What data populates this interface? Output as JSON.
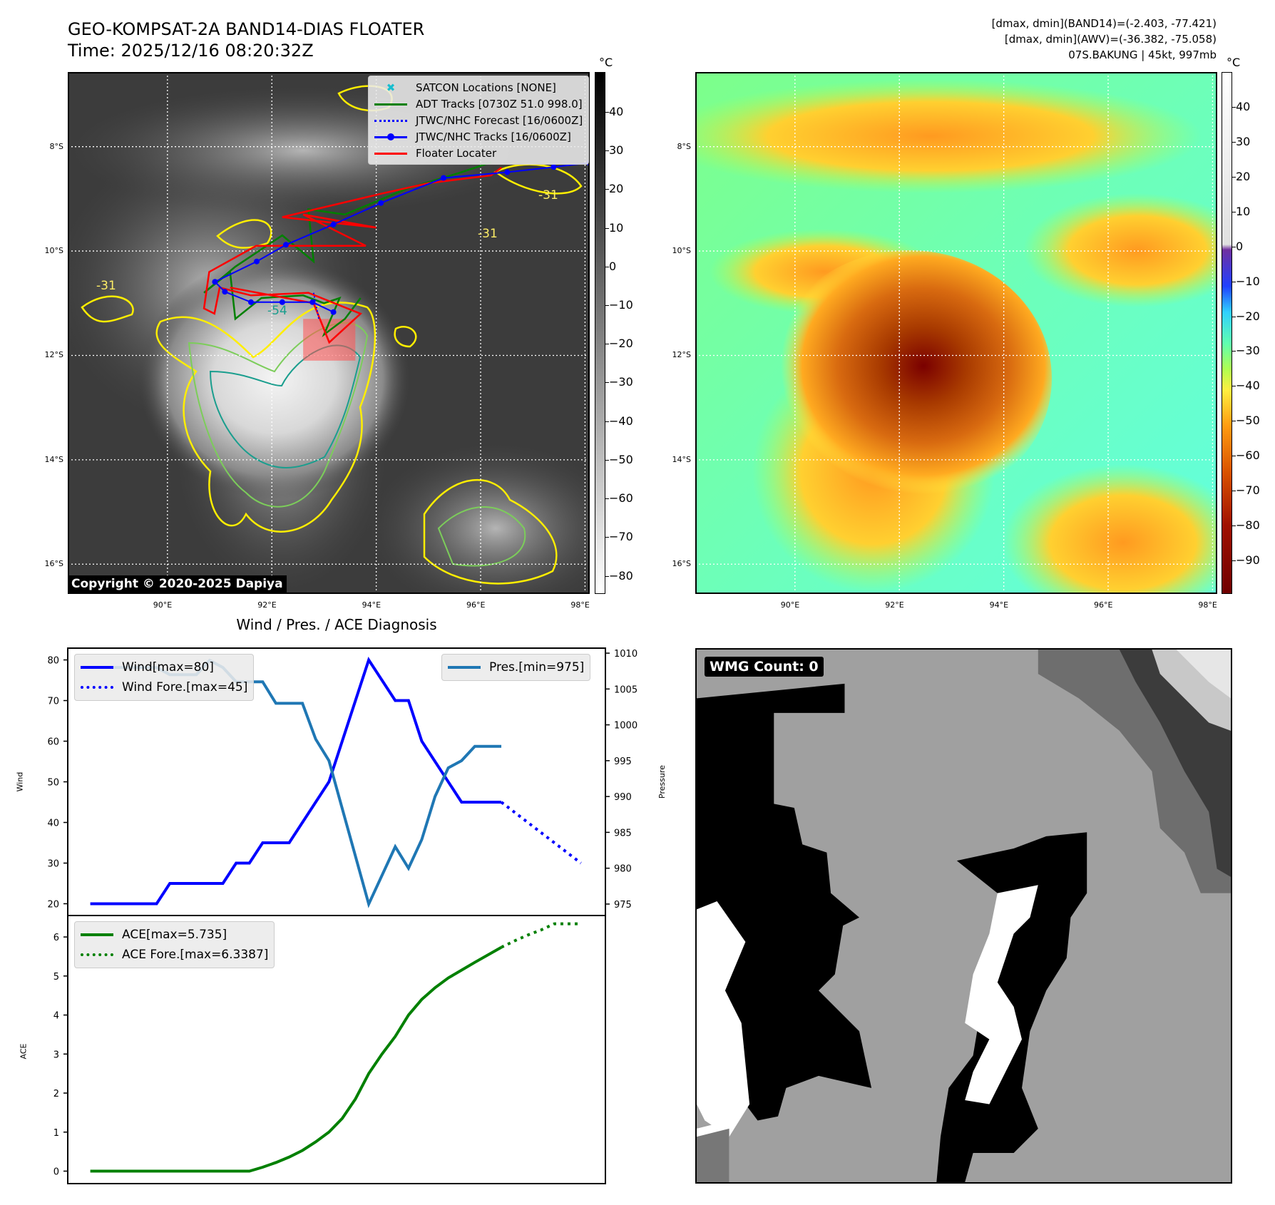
{
  "header": {
    "title_line1": "GEO-KOMPSAT-2A BAND14-DIAS FLOATER",
    "title_line2": "Time: 2025/12/16 08:20:32Z",
    "stats_band14": "[dmax, dmin](BAND14)=(-2.403, -77.421)",
    "stats_awv": "[dmax, dmin](AWV)=(-36.382, -75.058)",
    "storm_info": "07S.BAKUNG | 45kt, 997mb"
  },
  "map": {
    "lon_ticks": [
      "90°E",
      "92°E",
      "94°E",
      "96°E",
      "98°E"
    ],
    "lon_values": [
      90,
      92,
      94,
      96,
      98
    ],
    "lat_ticks": [
      "8°S",
      "10°S",
      "12°S",
      "14°S",
      "16°S"
    ],
    "lat_values": [
      8,
      10,
      12,
      14,
      16
    ],
    "copyright": "Copyright © 2020-2025 Dapiya",
    "contour_labels": [
      "-31",
      "-31",
      "-31",
      "-54"
    ],
    "legend": [
      {
        "label": "SATCON Locations [NONE]",
        "icon": "x-marker-icon",
        "color": "#17becf"
      },
      {
        "label": "ADT Tracks [0730Z 51.0 998.0]",
        "icon": "line-icon",
        "color": "#008000"
      },
      {
        "label": "JTWC/NHC Forecast [16/0600Z]",
        "icon": "dotted-line-icon",
        "color": "#0000ff"
      },
      {
        "label": "JTWC/NHC Tracks [16/0600Z]",
        "icon": "line-dot-icon",
        "color": "#0000ff"
      },
      {
        "label": "Floater Locater",
        "icon": "line-icon",
        "color": "#ff0000"
      }
    ],
    "jtwc_track": [
      [
        98.08,
        8.31
      ],
      [
        97.4,
        8.39
      ],
      [
        96.51,
        8.49
      ],
      [
        95.29,
        8.6
      ],
      [
        94.09,
        9.08
      ],
      [
        93.18,
        9.49
      ],
      [
        92.27,
        9.88
      ],
      [
        91.71,
        10.2
      ],
      [
        90.91,
        10.59
      ],
      [
        91.1,
        10.78
      ],
      [
        91.6,
        10.98
      ],
      [
        92.2,
        10.98
      ],
      [
        92.78,
        10.98
      ],
      [
        93.18,
        11.17
      ]
    ],
    "floater_track": [
      [
        96.4,
        8.4
      ],
      [
        96.2,
        8.55
      ],
      [
        95.0,
        8.7
      ],
      [
        94.1,
        8.9
      ],
      [
        92.2,
        9.35
      ],
      [
        94.0,
        9.55
      ],
      [
        92.6,
        9.3
      ],
      [
        93.8,
        9.9
      ],
      [
        91.7,
        9.9
      ],
      [
        90.8,
        10.4
      ],
      [
        90.7,
        11.1
      ],
      [
        90.9,
        11.2
      ],
      [
        91.0,
        10.7
      ],
      [
        91.6,
        10.85
      ],
      [
        92.7,
        10.8
      ],
      [
        93.7,
        11.2
      ],
      [
        93.1,
        11.75
      ],
      [
        92.8,
        11.0
      ],
      [
        91.2,
        10.7
      ]
    ],
    "adt_track": [
      [
        96.2,
        8.3
      ],
      [
        95.6,
        8.5
      ],
      [
        94.6,
        8.8
      ],
      [
        93.4,
        9.3
      ],
      [
        92.7,
        9.2
      ],
      [
        92.8,
        10.2
      ],
      [
        92.2,
        9.7
      ],
      [
        91.3,
        10.3
      ],
      [
        90.7,
        10.8
      ],
      [
        91.2,
        10.4
      ],
      [
        91.3,
        11.3
      ],
      [
        91.8,
        10.9
      ],
      [
        92.6,
        10.85
      ],
      [
        93.0,
        11.0
      ],
      [
        93.3,
        10.9
      ],
      [
        93.0,
        11.6
      ],
      [
        93.4,
        11.3
      ],
      [
        93.7,
        10.9
      ]
    ],
    "jtwc_forecast": [
      [
        92.8,
        10.8
      ],
      [
        92.9,
        11.3
      ]
    ],
    "floater_box": [
      [
        92.6,
        11.3
      ],
      [
        93.6,
        12.1
      ]
    ],
    "colorbar_left": {
      "unit": "°C",
      "ticks": [
        40,
        30,
        20,
        10,
        0,
        -10,
        -20,
        -30,
        -40,
        -50,
        -60,
        -70,
        -80
      ],
      "range": [
        50.3,
        -84.7
      ]
    },
    "colorbar_right": {
      "unit": "°C",
      "ticks": [
        40,
        30,
        20,
        10,
        0,
        -10,
        -20,
        -30,
        -40,
        -50,
        -60,
        -70,
        -80,
        -90
      ],
      "range": [
        50,
        -99.6
      ]
    }
  },
  "wmg": {
    "label": "WMG Count: 0"
  },
  "chart_data": [
    {
      "type": "line",
      "title": "Wind / Pres. / ACE Diagnosis",
      "ylabel": "Wind",
      "y2label": "Pressure",
      "ylim": [
        17.1,
        82.9
      ],
      "y2lim": [
        973.4,
        1010.7
      ],
      "xlim": [
        -1.7,
        38.85
      ],
      "yticks": [
        20,
        30,
        40,
        50,
        60,
        70,
        80
      ],
      "y2ticks": [
        975,
        980,
        985,
        990,
        995,
        1000,
        1005,
        1010
      ],
      "series": [
        {
          "name": "Wind[max=80]",
          "axis": "left",
          "color": "#0000ff",
          "style": "solid",
          "x": [
            0,
            5,
            6,
            10,
            11,
            12,
            13,
            15,
            18,
            21,
            23,
            24,
            25,
            28,
            31
          ],
          "values": [
            20,
            20,
            25,
            25,
            30,
            30,
            35,
            35,
            50,
            80,
            70,
            70,
            60,
            45,
            45
          ]
        },
        {
          "name": "Wind Fore.[max=45]",
          "axis": "left",
          "color": "#0000ff",
          "style": "dotted",
          "x": [
            31,
            37
          ],
          "values": [
            45,
            30
          ]
        },
        {
          "name": "Pres.[min=975]",
          "axis": "right",
          "color": "#1f77b4",
          "style": "solid",
          "x": [
            0,
            5,
            6,
            8,
            9,
            10,
            11,
            13,
            14,
            16,
            17,
            18,
            21,
            23,
            24,
            25,
            26,
            27,
            28,
            29,
            31
          ],
          "values": [
            1008,
            1008,
            1007,
            1007,
            1009,
            1008,
            1006,
            1006,
            1003,
            1003,
            998,
            995,
            975,
            983,
            980,
            984,
            990,
            994,
            995,
            997,
            997
          ]
        }
      ]
    },
    {
      "type": "line",
      "ylabel": "ACE",
      "ylim": [
        -0.32,
        6.55
      ],
      "xlim": [
        -1.7,
        38.85
      ],
      "yticks": [
        0,
        1,
        2,
        3,
        4,
        5,
        6
      ],
      "series": [
        {
          "name": "ACE[max=5.735]",
          "color": "#008000",
          "style": "solid",
          "x": [
            0,
            12,
            13,
            14,
            15,
            16,
            17,
            18,
            19,
            20,
            21,
            22,
            23,
            24,
            25,
            26,
            27,
            28,
            29,
            31
          ],
          "values": [
            0,
            0,
            0.1,
            0.22,
            0.36,
            0.53,
            0.75,
            1.0,
            1.35,
            1.85,
            2.5,
            3.0,
            3.45,
            4.0,
            4.4,
            4.7,
            4.95,
            5.15,
            5.35,
            5.735
          ]
        },
        {
          "name": "ACE Fore.[max=6.3387]",
          "color": "#008000",
          "style": "dotted",
          "x": [
            31,
            32,
            33,
            34,
            35,
            37
          ],
          "values": [
            5.735,
            5.9,
            6.05,
            6.18,
            6.3387,
            6.3387
          ]
        }
      ]
    }
  ]
}
